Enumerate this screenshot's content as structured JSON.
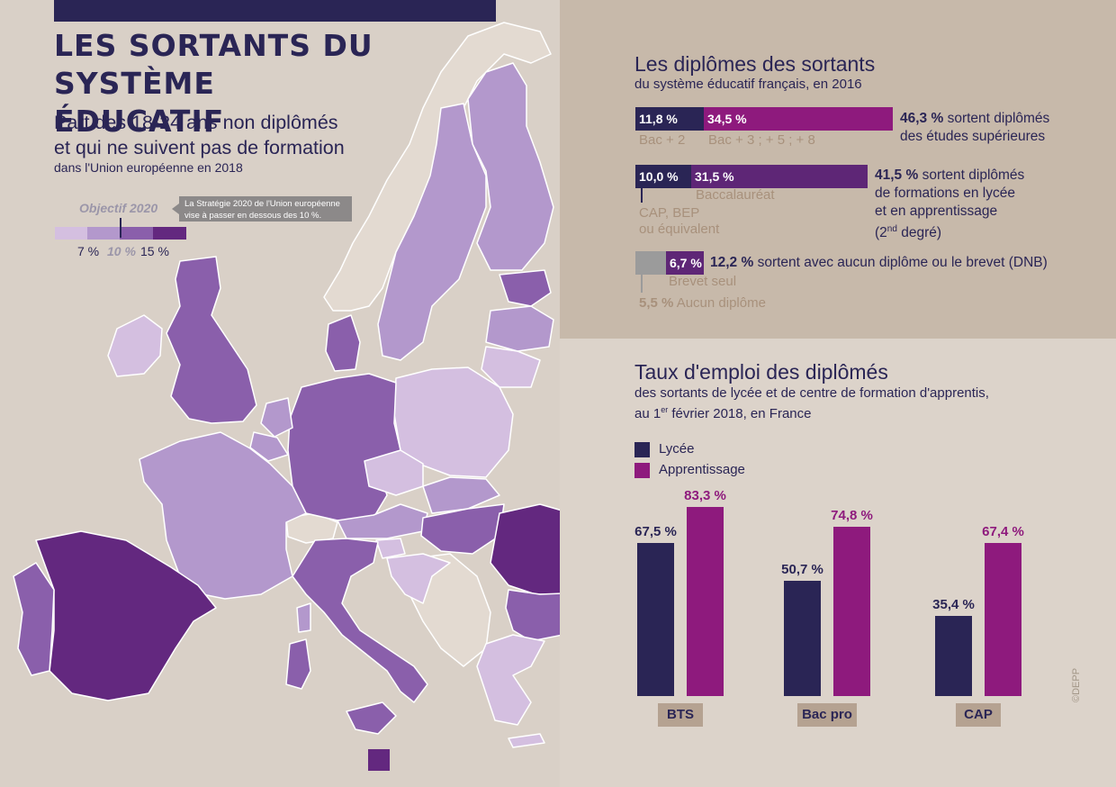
{
  "main_title": "LES SORTANTS DU SYSTÈME\nÉDUCATIF",
  "map": {
    "subtitle": "Part des 18-24 ans non diplômés\net qui ne suivent pas de formation",
    "note": "dans l'Union européenne en 2018",
    "objective_label": "Objectif 2020",
    "tooltip_line1": "La Stratégie 2020 de l'Union européenne",
    "tooltip_line2": "vise à passer en dessous des 10 %.",
    "legend_ticks": [
      "7 %",
      "10 %",
      "15 %"
    ],
    "colors": {
      "lightest": "#d4bfe0",
      "light": "#b398cc",
      "mid": "#8a5fab",
      "dark": "#63287f",
      "land": "#e3dad1",
      "border": "#ffffff"
    }
  },
  "diplomes": {
    "title": "Les diplômes des sortants",
    "subtitle": "du système éducatif français, en 2016",
    "colors": {
      "navy": "#2a2555",
      "magenta": "#8e1a7d",
      "purple": "#5e2676",
      "grey": "#9b9b9b",
      "brown_text": "#a8917c"
    },
    "row1": {
      "seg1_value": "11,8 %",
      "seg1_label": "Bac + 2",
      "seg2_value": "34,5 %",
      "seg2_label": "Bac + 3 ; + 5 ; + 8",
      "total": "46,3 %",
      "desc_rest": " sortent diplômés",
      "desc_line2": "des études supérieures"
    },
    "row2": {
      "seg1_value": "10,0 %",
      "seg1_label_l1": "CAP, BEP",
      "seg1_label_l2": "ou équivalent",
      "seg2_value": "31,5 %",
      "seg2_label": "Baccalauréat",
      "total": "41,5 %",
      "desc_rest": " sortent diplômés",
      "desc_line2": "de formations en lycée",
      "desc_line3": "et en apprentissage",
      "desc_line4_pre": "(2",
      "desc_line4_sup": "nd",
      "desc_line4_post": " degré)"
    },
    "row3": {
      "seg2_value": "6,7 %",
      "seg2_label": "Brevet seul",
      "seg1_value": "5,5 %",
      "seg1_label": "Aucun diplôme",
      "total": "12,2 %",
      "desc_rest": " sortent avec aucun diplôme ou le brevet (DNB)"
    }
  },
  "emploi": {
    "title": "Taux d'emploi des diplômés",
    "subtitle_l1": "des sortants de lycée et de centre de formation d'apprentis,",
    "subtitle_l2_pre": "au 1",
    "subtitle_l2_sup": "er",
    "subtitle_l2_post": " février 2018, en France",
    "legend": [
      "Lycée",
      "Apprentissage"
    ]
  },
  "chart_data": {
    "type": "bar",
    "title": "Taux d'emploi des diplômés",
    "categories": [
      "BTS",
      "Bac pro",
      "CAP"
    ],
    "series": [
      {
        "name": "Lycée",
        "values": [
          67.5,
          50.7,
          35.4
        ],
        "labels": [
          "67,5 %",
          "50,7 %",
          "35,4 %"
        ],
        "color": "#2a2555"
      },
      {
        "name": "Apprentissage",
        "values": [
          83.3,
          74.8,
          67.4
        ],
        "labels": [
          "83,3 %",
          "74,8 %",
          "67,4 %"
        ],
        "color": "#8e1a7d"
      }
    ],
    "ylim": [
      0,
      100
    ]
  },
  "credit": "©DEPP"
}
